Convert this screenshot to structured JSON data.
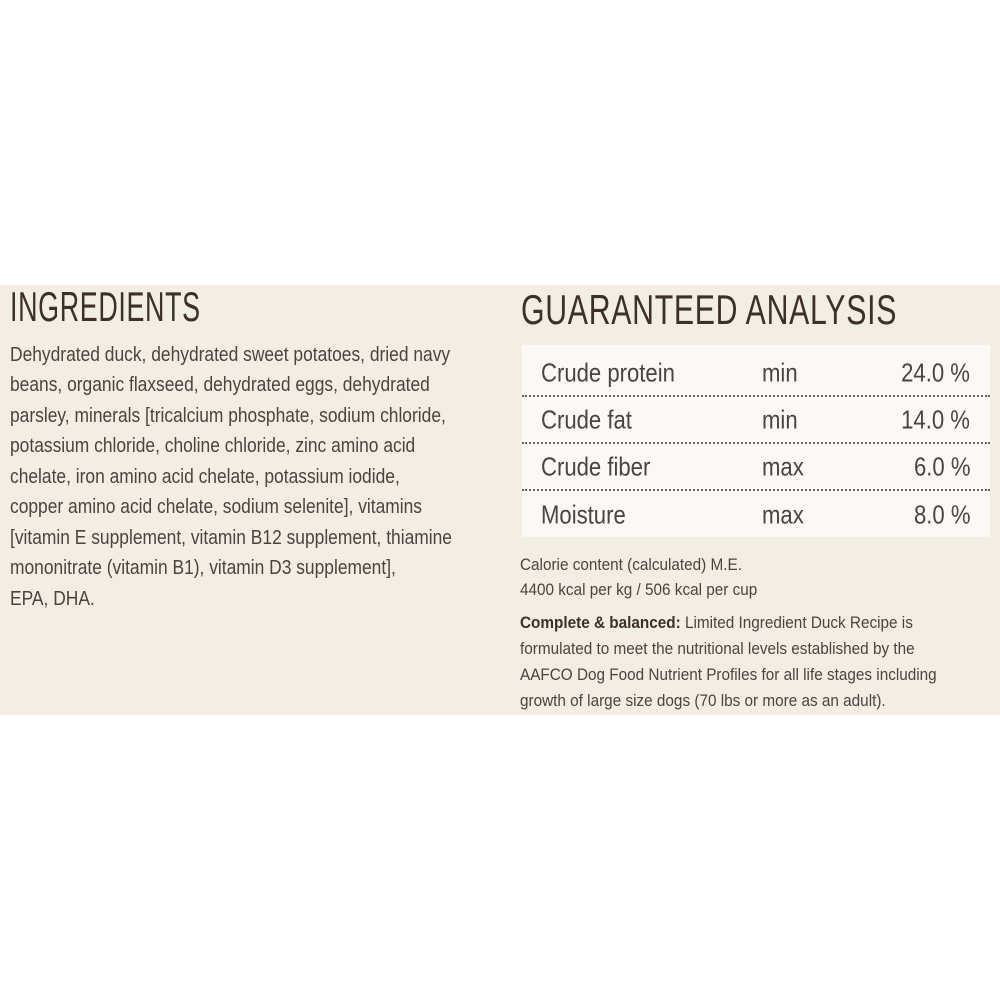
{
  "ingredients": {
    "title": "INGREDIENTS",
    "lines": [
      "Dehydrated duck, dehydrated sweet potatoes, dried navy",
      "beans, organic flaxseed, dehydrated eggs, dehydrated",
      "parsley, minerals [tricalcium phosphate, sodium chloride,",
      "potassium chloride, choline chloride, zinc amino acid",
      "chelate, iron amino acid chelate, potassium iodide,",
      "copper amino acid chelate, sodium selenite], vitamins",
      "[vitamin E supplement, vitamin B12 supplement, thiamine",
      "mononitrate (vitamin B1), vitamin D3 supplement],",
      "EPA, DHA."
    ]
  },
  "analysis": {
    "title": "GUARANTEED ANALYSIS",
    "rows": [
      {
        "label": "Crude protein",
        "qualifier": "min",
        "value": "24.0 %"
      },
      {
        "label": "Crude fat",
        "qualifier": "min",
        "value": "14.0 %"
      },
      {
        "label": "Crude fiber",
        "qualifier": "max",
        "value": "6.0 %"
      },
      {
        "label": "Moisture",
        "qualifier": "max",
        "value": "8.0 %"
      }
    ],
    "calorie_lines": [
      "Calorie content (calculated) M.E.",
      "4400 kcal per kg / 506 kcal per cup"
    ],
    "balanced_label": "Complete & balanced:",
    "balanced_lines": [
      " Limited Ingredient Duck Recipe is",
      "formulated to meet the nutritional levels established by the",
      "AAFCO Dog Food Nutrient Profiles for all life stages including",
      "growth of large size dogs (70 lbs or more as an adult)."
    ]
  },
  "colors": {
    "background": "#f3eee4",
    "heading": "#3d3029",
    "text": "#4a4440"
  }
}
